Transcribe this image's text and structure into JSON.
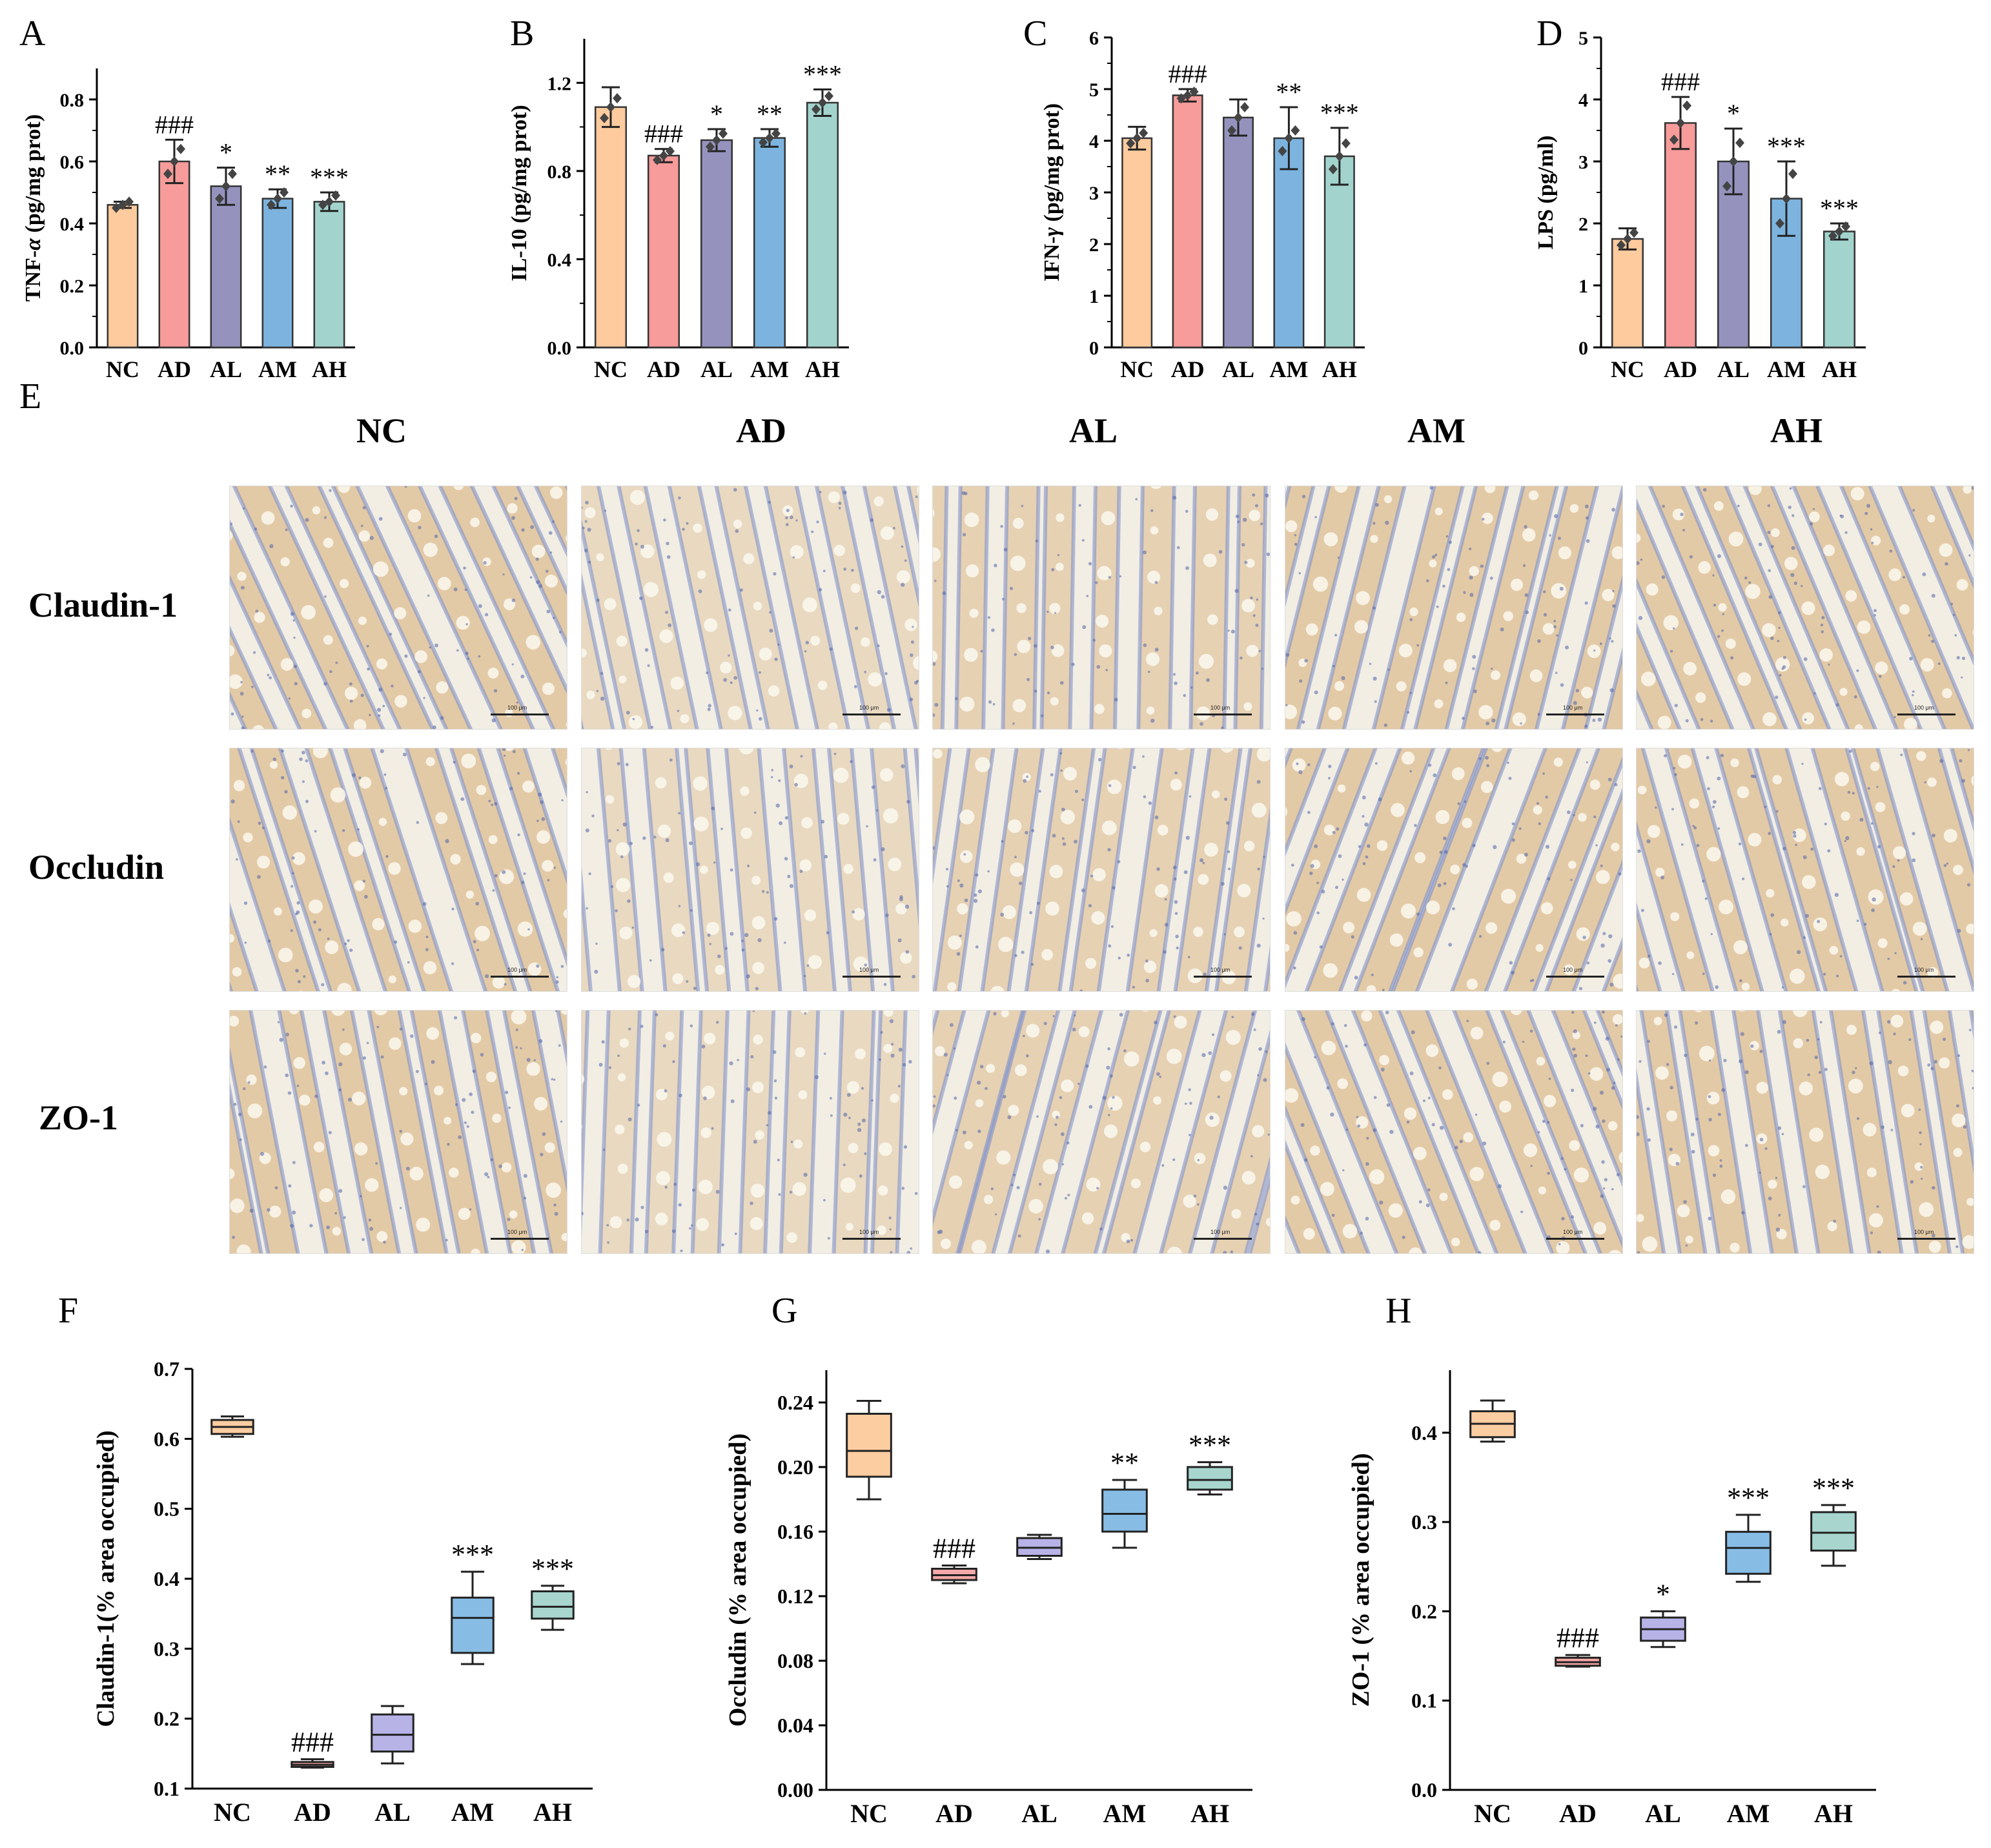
{
  "bar_panels": [
    {
      "letter": "A",
      "ylabel_parts": [
        "TNF-",
        "α",
        " (pg/mg prot)"
      ],
      "ylim": [
        0,
        0.9
      ],
      "ticks": [
        "0.0",
        "0.2",
        "0.4",
        "0.6",
        "0.8"
      ],
      "tick_values": [
        0,
        0.2,
        0.4,
        0.6,
        0.8
      ],
      "categories": [
        "NC",
        "AD",
        "AL",
        "AM",
        "AH"
      ],
      "values": [
        0.46,
        0.6,
        0.52,
        0.48,
        0.47
      ],
      "errors": [
        0.01,
        0.07,
        0.06,
        0.03,
        0.03
      ],
      "points": [
        [
          0.45,
          0.46,
          0.47
        ],
        [
          0.56,
          0.6,
          0.64
        ],
        [
          0.48,
          0.52,
          0.56
        ],
        [
          0.46,
          0.48,
          0.5
        ],
        [
          0.46,
          0.47,
          0.49
        ]
      ],
      "marks": [
        "",
        "###",
        "*",
        "**",
        "***"
      ]
    },
    {
      "letter": "B",
      "ylabel_parts": [
        "IL-10 (pg/mg prot)"
      ],
      "ylim": [
        0,
        1.4
      ],
      "ticks": [
        "0.0",
        "0.4",
        "0.8",
        "1.2"
      ],
      "tick_values": [
        0,
        0.4,
        0.8,
        1.2
      ],
      "categories": [
        "NC",
        "AD",
        "AL",
        "AM",
        "AH"
      ],
      "values": [
        1.09,
        0.87,
        0.94,
        0.95,
        1.11
      ],
      "errors": [
        0.09,
        0.03,
        0.05,
        0.04,
        0.06
      ],
      "points": [
        [
          1.04,
          1.09,
          1.13
        ],
        [
          0.85,
          0.87,
          0.89
        ],
        [
          0.91,
          0.94,
          0.97
        ],
        [
          0.93,
          0.95,
          0.97
        ],
        [
          1.08,
          1.11,
          1.14
        ]
      ],
      "marks": [
        "",
        "###",
        "*",
        "**",
        "***"
      ]
    },
    {
      "letter": "C",
      "ylabel_parts": [
        "IFN-",
        "γ",
        " (pg/mg prot)"
      ],
      "ylim": [
        0,
        6
      ],
      "ticks": [
        "0",
        "1",
        "2",
        "3",
        "4",
        "5",
        "6"
      ],
      "tick_values": [
        0,
        1,
        2,
        3,
        4,
        5,
        6
      ],
      "categories": [
        "NC",
        "AD",
        "AL",
        "AM",
        "AH"
      ],
      "values": [
        4.05,
        4.88,
        4.45,
        4.05,
        3.7
      ],
      "errors": [
        0.22,
        0.12,
        0.35,
        0.6,
        0.55
      ],
      "points": [
        [
          3.95,
          4.05,
          4.15
        ],
        [
          4.82,
          4.88,
          4.95
        ],
        [
          4.2,
          4.45,
          4.65
        ],
        [
          3.8,
          4.05,
          4.2
        ],
        [
          3.45,
          3.7,
          3.95
        ]
      ],
      "marks": [
        "",
        "###",
        "",
        "**",
        "***"
      ]
    },
    {
      "letter": "D",
      "ylabel_parts": [
        "LPS (pg/ml)"
      ],
      "ylim": [
        0,
        5
      ],
      "ticks": [
        "0",
        "1",
        "2",
        "3",
        "4",
        "5"
      ],
      "tick_values": [
        0,
        1,
        2,
        3,
        4,
        5
      ],
      "categories": [
        "NC",
        "AD",
        "AL",
        "AM",
        "AH"
      ],
      "values": [
        1.75,
        3.62,
        3.0,
        2.4,
        1.87
      ],
      "errors": [
        0.17,
        0.42,
        0.53,
        0.6,
        0.13
      ],
      "points": [
        [
          1.65,
          1.75,
          1.85
        ],
        [
          3.35,
          3.62,
          3.9
        ],
        [
          2.6,
          3.0,
          3.3
        ],
        [
          2.0,
          2.4,
          2.8
        ],
        [
          1.8,
          1.87,
          1.95
        ]
      ],
      "marks": [
        "",
        "###",
        "*",
        "***",
        "***"
      ]
    }
  ],
  "box_panels": [
    {
      "letter": "F",
      "ylabel": "Claudin-1(% area occupied)",
      "ylim": [
        0.1,
        0.7
      ],
      "ticks": [
        "0.1",
        "0.2",
        "0.3",
        "0.4",
        "0.5",
        "0.6",
        "0.7"
      ],
      "tick_values": [
        0.1,
        0.2,
        0.3,
        0.4,
        0.5,
        0.6,
        0.7
      ],
      "categories": [
        "NC",
        "AD",
        "AL",
        "AM",
        "AH"
      ],
      "boxes": [
        {
          "min": 0.603,
          "q1": 0.607,
          "median": 0.617,
          "q3": 0.627,
          "max": 0.632
        },
        {
          "min": 0.13,
          "q1": 0.131,
          "median": 0.134,
          "q3": 0.138,
          "max": 0.142
        },
        {
          "min": 0.136,
          "q1": 0.153,
          "median": 0.177,
          "q3": 0.206,
          "max": 0.218
        },
        {
          "min": 0.278,
          "q1": 0.294,
          "median": 0.344,
          "q3": 0.373,
          "max": 0.41
        },
        {
          "min": 0.327,
          "q1": 0.343,
          "median": 0.36,
          "q3": 0.382,
          "max": 0.39
        }
      ],
      "marks": [
        "",
        "###",
        "",
        "***",
        "***"
      ]
    },
    {
      "letter": "G",
      "ylabel": "Occludin (% area occupied)",
      "ylim": [
        0,
        0.26
      ],
      "ticks": [
        "0.00",
        "0.04",
        "0.08",
        "0.12",
        "0.16",
        "0.20",
        "0.24"
      ],
      "tick_values": [
        0,
        0.04,
        0.08,
        0.12,
        0.16,
        0.2,
        0.24
      ],
      "categories": [
        "NC",
        "AD",
        "AL",
        "AM",
        "AH"
      ],
      "boxes": [
        {
          "min": 0.18,
          "q1": 0.194,
          "median": 0.21,
          "q3": 0.233,
          "max": 0.241
        },
        {
          "min": 0.128,
          "q1": 0.13,
          "median": 0.133,
          "q3": 0.137,
          "max": 0.139
        },
        {
          "min": 0.143,
          "q1": 0.145,
          "median": 0.15,
          "q3": 0.156,
          "max": 0.158
        },
        {
          "min": 0.15,
          "q1": 0.16,
          "median": 0.171,
          "q3": 0.186,
          "max": 0.192
        },
        {
          "min": 0.183,
          "q1": 0.186,
          "median": 0.192,
          "q3": 0.2,
          "max": 0.203
        }
      ],
      "marks": [
        "",
        "###",
        "",
        "**",
        "***"
      ]
    },
    {
      "letter": "H",
      "ylabel": "ZO-1 (% area occupied)",
      "ylim": [
        0,
        0.47
      ],
      "ticks": [
        "0.0",
        "0.1",
        "0.2",
        "0.3",
        "0.4"
      ],
      "tick_values": [
        0,
        0.1,
        0.2,
        0.3,
        0.4
      ],
      "categories": [
        "NC",
        "AD",
        "AL",
        "AM",
        "AH"
      ],
      "boxes": [
        {
          "min": 0.39,
          "q1": 0.395,
          "median": 0.41,
          "q3": 0.424,
          "max": 0.436
        },
        {
          "min": 0.138,
          "q1": 0.139,
          "median": 0.143,
          "q3": 0.148,
          "max": 0.151
        },
        {
          "min": 0.16,
          "q1": 0.167,
          "median": 0.18,
          "q3": 0.193,
          "max": 0.2
        },
        {
          "min": 0.233,
          "q1": 0.242,
          "median": 0.271,
          "q3": 0.289,
          "max": 0.308
        },
        {
          "min": 0.251,
          "q1": 0.268,
          "median": 0.288,
          "q3": 0.311,
          "max": 0.319
        }
      ],
      "marks": [
        "",
        "###",
        "*",
        "***",
        "***"
      ]
    }
  ],
  "colors": {
    "NC": "#fdcb9e",
    "AD": "#f79b9b",
    "AL": "#9593be",
    "AM": "#7db4df",
    "AH": "#a3d3cd",
    "box_NC": "#fdcda2",
    "box_AD": "#f6a8a8",
    "box_AL": "#b8b3e6",
    "box_AM": "#87bde5",
    "box_AH": "#a8d6cf"
  },
  "histology": {
    "letter": "E",
    "columns": [
      "NC",
      "AD",
      "AL",
      "AM",
      "AH"
    ],
    "rows": [
      "Claudin-1",
      "Occludin",
      "ZO-1"
    ],
    "scale_bar": "100 μm"
  },
  "chart_data": [
    {
      "type": "bar",
      "title": "A",
      "ylabel": "TNF-α (pg/mg prot)",
      "categories": [
        "NC",
        "AD",
        "AL",
        "AM",
        "AH"
      ],
      "values": [
        0.46,
        0.6,
        0.52,
        0.48,
        0.47
      ],
      "ylim": [
        0,
        0.9
      ]
    },
    {
      "type": "bar",
      "title": "B",
      "ylabel": "IL-10 (pg/mg prot)",
      "categories": [
        "NC",
        "AD",
        "AL",
        "AM",
        "AH"
      ],
      "values": [
        1.09,
        0.87,
        0.94,
        0.95,
        1.11
      ],
      "ylim": [
        0,
        1.4
      ]
    },
    {
      "type": "bar",
      "title": "C",
      "ylabel": "IFN-γ (pg/mg prot)",
      "categories": [
        "NC",
        "AD",
        "AL",
        "AM",
        "AH"
      ],
      "values": [
        4.05,
        4.88,
        4.45,
        4.05,
        3.7
      ],
      "ylim": [
        0,
        6
      ]
    },
    {
      "type": "bar",
      "title": "D",
      "ylabel": "LPS (pg/ml)",
      "categories": [
        "NC",
        "AD",
        "AL",
        "AM",
        "AH"
      ],
      "values": [
        1.75,
        3.62,
        3.0,
        2.4,
        1.87
      ],
      "ylim": [
        0,
        5
      ]
    },
    {
      "type": "box",
      "title": "F",
      "ylabel": "Claudin-1(% area occupied)",
      "categories": [
        "NC",
        "AD",
        "AL",
        "AM",
        "AH"
      ],
      "medians": [
        0.617,
        0.134,
        0.177,
        0.344,
        0.36
      ],
      "ylim": [
        0.1,
        0.7
      ]
    },
    {
      "type": "box",
      "title": "G",
      "ylabel": "Occludin (% area occupied)",
      "categories": [
        "NC",
        "AD",
        "AL",
        "AM",
        "AH"
      ],
      "medians": [
        0.21,
        0.133,
        0.15,
        0.171,
        0.192
      ],
      "ylim": [
        0,
        0.26
      ]
    },
    {
      "type": "box",
      "title": "H",
      "ylabel": "ZO-1 (% area occupied)",
      "categories": [
        "NC",
        "AD",
        "AL",
        "AM",
        "AH"
      ],
      "medians": [
        0.41,
        0.143,
        0.18,
        0.271,
        0.288
      ],
      "ylim": [
        0,
        0.47
      ]
    }
  ]
}
